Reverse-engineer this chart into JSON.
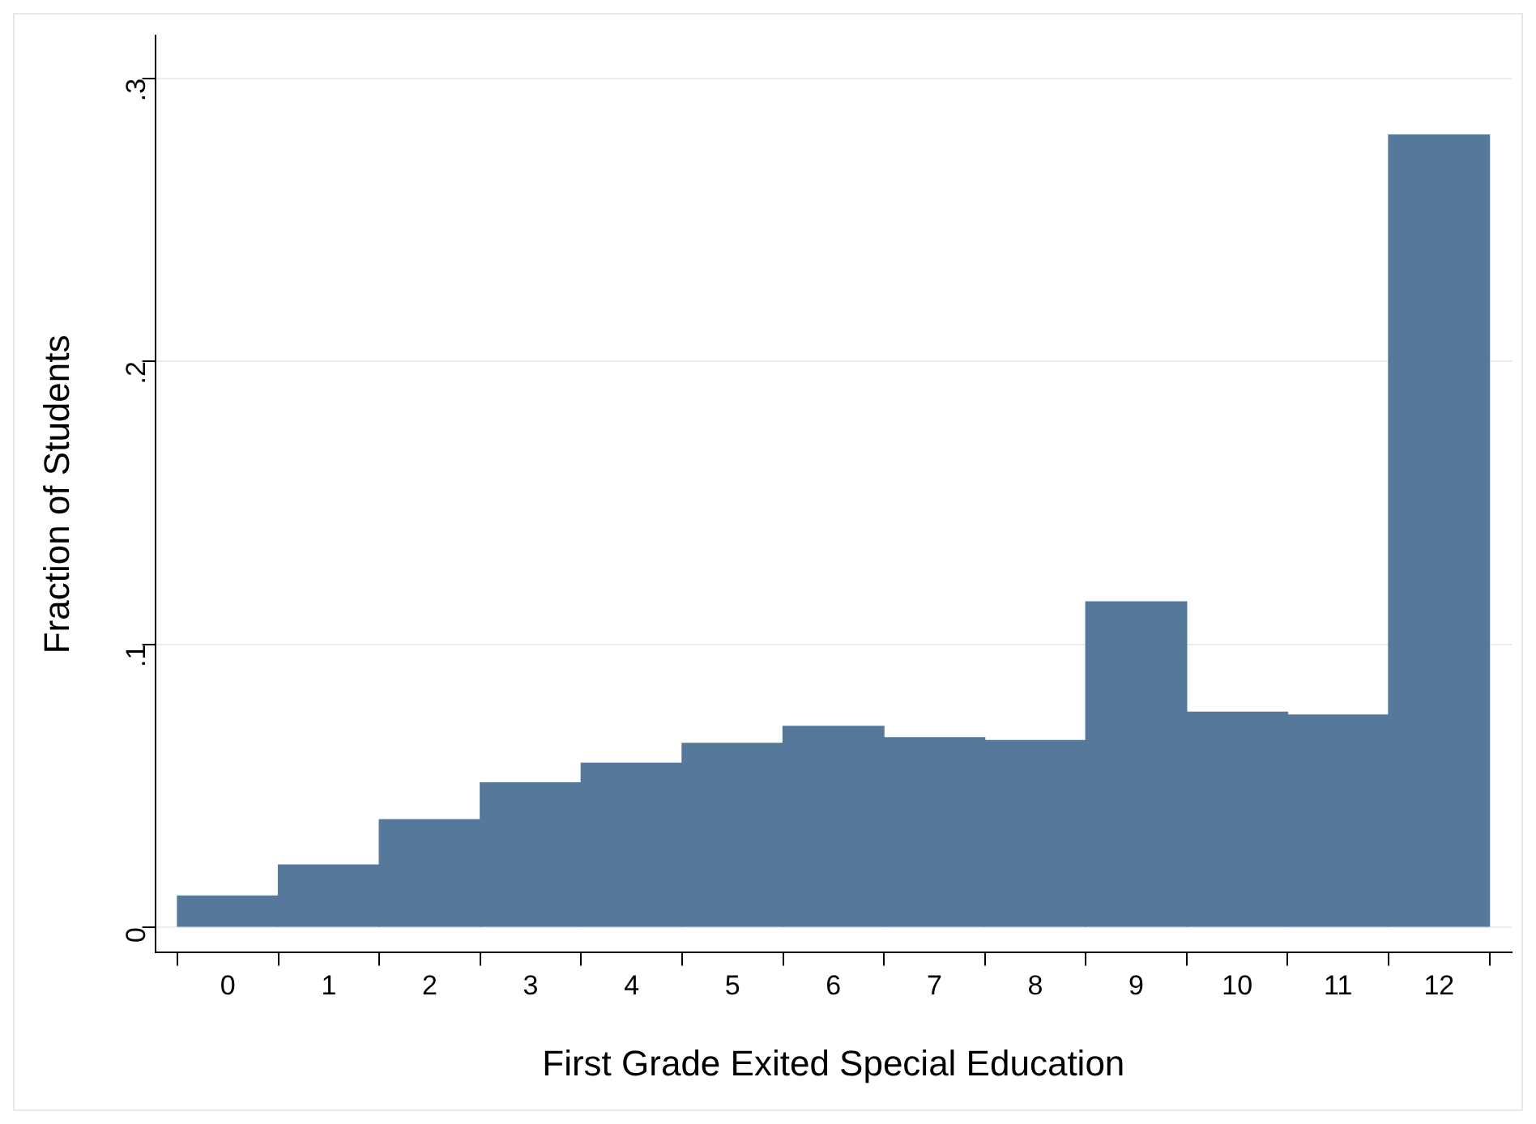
{
  "chart_data": {
    "type": "histogram",
    "xlabel": "First Grade Exited Special Education",
    "ylabel": "Fraction of Students",
    "bins": [
      -0.5,
      0.5,
      1.5,
      2.5,
      3.5,
      4.5,
      5.5,
      6.5,
      7.5,
      8.5,
      9.5,
      10.5,
      11.5,
      12.5
    ],
    "values": [
      0.011,
      0.022,
      0.038,
      0.051,
      0.058,
      0.065,
      0.071,
      0.067,
      0.066,
      0.115,
      0.076,
      0.075,
      0.28
    ],
    "color": "#56789a",
    "xlim": [
      -0.72,
      12.72
    ],
    "xticks": [
      0,
      1,
      2,
      3,
      4,
      5,
      6,
      7,
      8,
      9,
      10,
      11,
      12
    ],
    "ylim": [
      -0.009,
      0.315
    ],
    "yticks": [
      0,
      {
        "value": 0.1,
        "label": ".1"
      },
      {
        "value": 0.2,
        "label": ".2"
      },
      {
        "value": 0.3,
        "label": ".3"
      }
    ],
    "grid": "y",
    "legend": false
  }
}
